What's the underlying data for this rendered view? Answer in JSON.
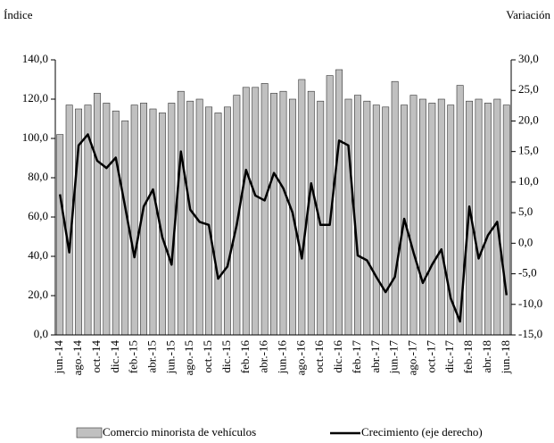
{
  "chart_data": {
    "type": "bar-line",
    "y_label": "Índice",
    "y2_label": "Variación",
    "categories": [
      "jun.-14",
      null,
      "ago.-14",
      null,
      "oct.-14",
      null,
      "dic.-14",
      null,
      "feb.-15",
      null,
      "abr.-15",
      null,
      "jun.-15",
      null,
      "ago.-15",
      null,
      "oct.-15",
      null,
      "dic.-15",
      null,
      "feb.-16",
      null,
      "abr.-16",
      null,
      "jun.-16",
      null,
      "ago.-16",
      null,
      "oct.-16",
      null,
      "dic.-16",
      null,
      "feb.-17",
      null,
      "abr.-17",
      null,
      "jun.-17",
      null,
      "ago.-17",
      null,
      "oct.-17",
      null,
      "dic.-17",
      null,
      "feb.-18",
      null,
      "abr.-18",
      null,
      "jun.-18"
    ],
    "series": [
      {
        "name": "Comercio minorista de vehículos",
        "type": "bar",
        "color": "#c0c0c0",
        "values": [
          102,
          117,
          115,
          117,
          123,
          118,
          114,
          109,
          117,
          118,
          115,
          113,
          118,
          124,
          119,
          120,
          116,
          113,
          116,
          122,
          126,
          126,
          128,
          123,
          124,
          120,
          130,
          124,
          119,
          132,
          135,
          120,
          122,
          119,
          117,
          116,
          129,
          117,
          122,
          120,
          118,
          120,
          117,
          127,
          119,
          120,
          118,
          120,
          117
        ]
      },
      {
        "name": "Crecimiento (eje derecho)",
        "type": "line",
        "axis": "y2",
        "color": "#000000",
        "values": [
          8,
          -1.5,
          16,
          17.8,
          13.5,
          12.3,
          14,
          6,
          -2.3,
          6,
          8.8,
          1,
          -3.5,
          15,
          5.5,
          3.5,
          3,
          -5.8,
          -3.8,
          3,
          12,
          7.8,
          7,
          11.5,
          9,
          5,
          -2.5,
          9.8,
          3,
          3,
          16.8,
          16,
          -2,
          -2.8,
          -5.5,
          -8,
          -5.5,
          4,
          -1.5,
          -6.5,
          -3.5,
          -1,
          -9,
          -12.8,
          6,
          -2.5,
          1.3,
          3.5,
          -8.5
        ]
      }
    ],
    "ylim": [
      0,
      140
    ],
    "yticks": [
      {
        "value": 0,
        "label": "0,0"
      },
      {
        "value": 20,
        "label": "20,0"
      },
      {
        "value": 40,
        "label": "40,0"
      },
      {
        "value": 60,
        "label": "60,0"
      },
      {
        "value": 80,
        "label": "80,0"
      },
      {
        "value": 100,
        "label": "100,0"
      },
      {
        "value": 120,
        "label": "120,0"
      },
      {
        "value": 140,
        "label": "140,0"
      }
    ],
    "y2lim": [
      -15,
      30
    ],
    "y2ticks": [
      {
        "value": -15,
        "label": "-15,0"
      },
      {
        "value": -10,
        "label": "-10,0"
      },
      {
        "value": -5,
        "label": "-5,0"
      },
      {
        "value": 0,
        "label": "0,0"
      },
      {
        "value": 5,
        "label": "5,0"
      },
      {
        "value": 10,
        "label": "10,0"
      },
      {
        "value": 15,
        "label": "15,0"
      },
      {
        "value": 20,
        "label": "20,0"
      },
      {
        "value": 25,
        "label": "25,0"
      },
      {
        "value": 30,
        "label": "30,0"
      }
    ]
  }
}
